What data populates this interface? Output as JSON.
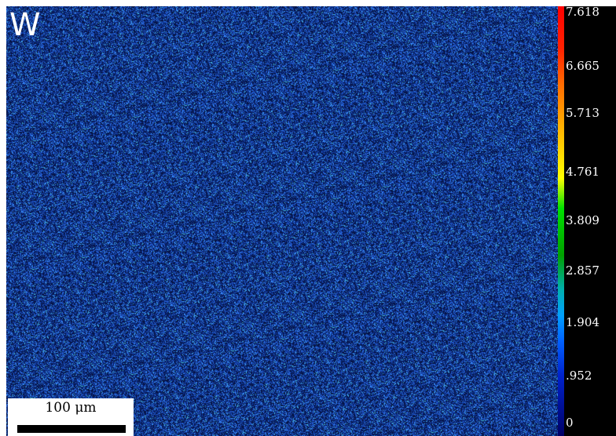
{
  "element_label": "W",
  "scale_bar": {
    "label": "100 μm"
  },
  "colorbar": {
    "ticks": [
      "7.618",
      "6.665",
      "5.713",
      "4.761",
      "3.809",
      "2.857",
      "1.904",
      ".952",
      "0"
    ]
  },
  "colors": {
    "map_base": "#0a2a78",
    "map_speckle": "#4f8fff",
    "map_cyan": "#35c6ff",
    "text_on_dark": "#ffffff",
    "colorbar_bg": "#000000"
  }
}
